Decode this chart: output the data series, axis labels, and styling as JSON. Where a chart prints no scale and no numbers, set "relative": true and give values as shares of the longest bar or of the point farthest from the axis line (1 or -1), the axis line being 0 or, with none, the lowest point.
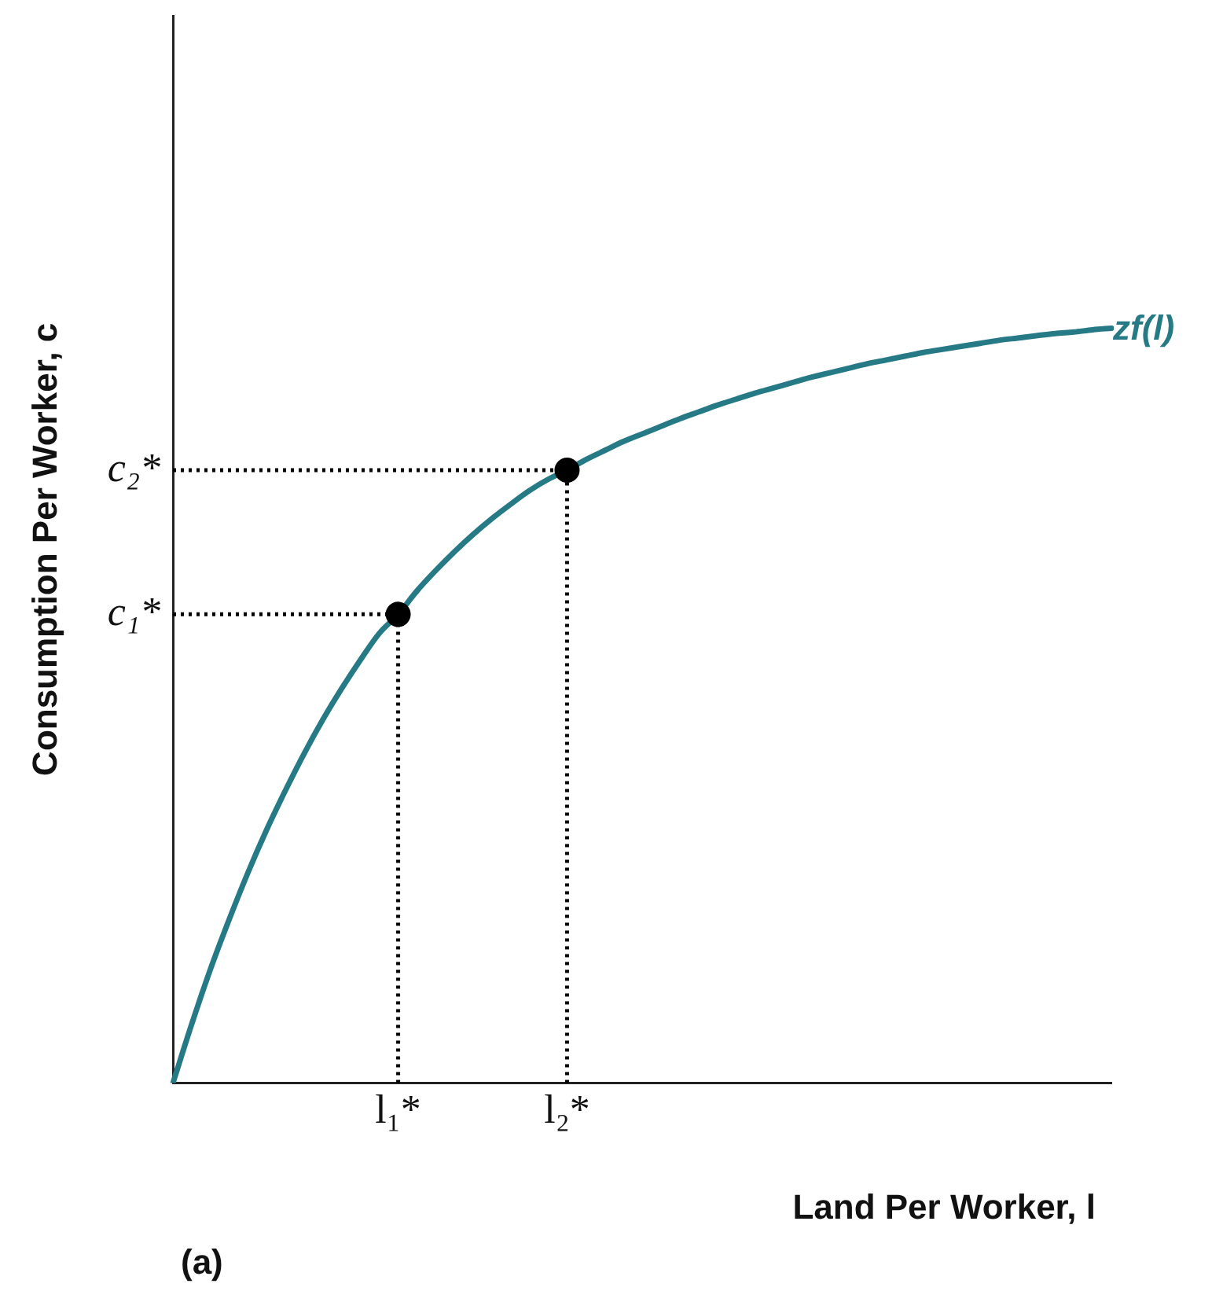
{
  "chart_data": {
    "type": "line",
    "relative": true,
    "xlabel": "Land Per Worker, l",
    "ylabel": "Consumption Per Worker, c",
    "categories": [
      null,
      null,
      null,
      null,
      null,
      null,
      null,
      null,
      null,
      null,
      null,
      null,
      "l₁*",
      null,
      null,
      null,
      null,
      null,
      null,
      null,
      null,
      "l₂*",
      null,
      null,
      null,
      null,
      null,
      null,
      null,
      null,
      null,
      null,
      null,
      null,
      null,
      null,
      null,
      null,
      null,
      null,
      null,
      null,
      null,
      null,
      null,
      null,
      null,
      null,
      null,
      null,
      null
    ],
    "series": [
      {
        "name": "zf(l)",
        "color": "#267a85",
        "line_style": "solid",
        "marker": "none",
        "values": [
          0,
          0.078,
          0.151,
          0.217,
          0.279,
          0.336,
          0.388,
          0.437,
          0.482,
          0.523,
          0.561,
          0.596,
          0.621,
          0.652,
          0.679,
          0.704,
          0.727,
          0.748,
          0.767,
          0.785,
          0.8,
          0.812,
          0.826,
          0.838,
          0.85,
          0.86,
          0.87,
          0.88,
          0.889,
          0.898,
          0.906,
          0.914,
          0.921,
          0.928,
          0.935,
          0.941,
          0.947,
          0.953,
          0.958,
          0.963,
          0.968,
          0.972,
          0.976,
          0.98,
          0.984,
          0.987,
          0.99,
          0.993,
          0.995,
          0.998,
          1
        ]
      },
      {
        "type": "lollipop",
        "color": "#000000",
        "marker": "circle",
        "line_style": "dotted",
        "values": [
          null,
          null,
          null,
          null,
          null,
          null,
          null,
          null,
          null,
          null,
          null,
          null,
          0.621,
          null,
          null,
          null,
          null,
          null,
          null,
          null,
          null,
          0.812,
          null,
          null,
          null,
          null,
          null,
          null,
          null,
          null,
          null,
          null,
          null,
          null,
          null,
          null,
          null,
          null,
          null,
          null,
          null,
          null,
          null,
          null,
          null,
          null,
          null,
          null,
          null,
          null,
          null
        ]
      }
    ],
    "ref_lines": [
      {
        "axis": "y",
        "value": 0.621,
        "label": "c₁*",
        "color": "#000000",
        "line_style": "dotted"
      },
      {
        "axis": "y",
        "value": 0.812,
        "label": "c₂*",
        "color": "#000000",
        "line_style": "dotted"
      }
    ],
    "annotations": [
      "(a)"
    ],
    "legend": false
  }
}
